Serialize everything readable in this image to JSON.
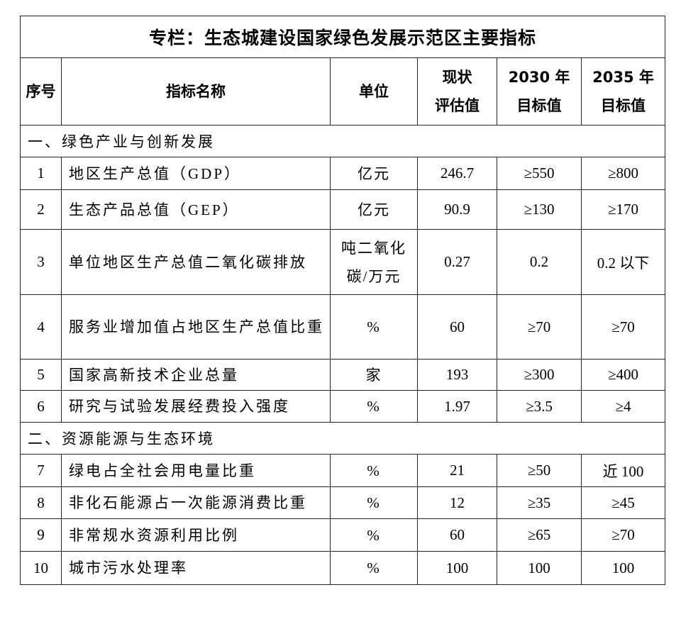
{
  "title": "专栏：生态城建设国家绿色发展示范区主要指标",
  "headers": {
    "no": "序号",
    "name": "指标名称",
    "unit": "单位",
    "current_l1": "现状",
    "current_l2": "评估值",
    "y2030_l1": "2030 年",
    "y2030_l2": "目标值",
    "y2035_l1": "2035 年",
    "y2035_l2": "目标值"
  },
  "sections": [
    {
      "title": "一、绿色产业与创新发展",
      "rows": [
        {
          "no": "1",
          "name": "地区生产总值（GDP）",
          "unit": "亿元",
          "current": "246.7",
          "y2030": "≥550",
          "y2035": "≥800"
        },
        {
          "no": "2",
          "name": "生态产品总值（GEP）",
          "unit": "亿元",
          "current": "90.9",
          "y2030": "≥130",
          "y2035": "≥170"
        },
        {
          "no": "3",
          "name": "单位地区生产总值二氧化碳排放",
          "unit": "吨二氧化碳/万元",
          "current": "0.27",
          "y2030": "0.2",
          "y2035": "0.2 以下"
        },
        {
          "no": "4",
          "name": "服务业增加值占地区生产总值比重",
          "unit": "%",
          "current": "60",
          "y2030": "≥70",
          "y2035": "≥70"
        },
        {
          "no": "5",
          "name": "国家高新技术企业总量",
          "unit": "家",
          "current": "193",
          "y2030": "≥300",
          "y2035": "≥400"
        },
        {
          "no": "6",
          "name": "研究与试验发展经费投入强度",
          "unit": "%",
          "current": "1.97",
          "y2030": "≥3.5",
          "y2035": "≥4"
        }
      ]
    },
    {
      "title": "二、资源能源与生态环境",
      "rows": [
        {
          "no": "7",
          "name": "绿电占全社会用电量比重",
          "unit": "%",
          "current": "21",
          "y2030": "≥50",
          "y2035": "近 100"
        },
        {
          "no": "8",
          "name": "非化石能源占一次能源消费比重",
          "unit": "%",
          "current": "12",
          "y2030": "≥35",
          "y2035": "≥45"
        },
        {
          "no": "9",
          "name": "非常规水资源利用比例",
          "unit": "%",
          "current": "60",
          "y2030": "≥65",
          "y2035": "≥70"
        },
        {
          "no": "10",
          "name": "城市污水处理率",
          "unit": "%",
          "current": "100",
          "y2030": "100",
          "y2035": "100"
        }
      ]
    }
  ]
}
